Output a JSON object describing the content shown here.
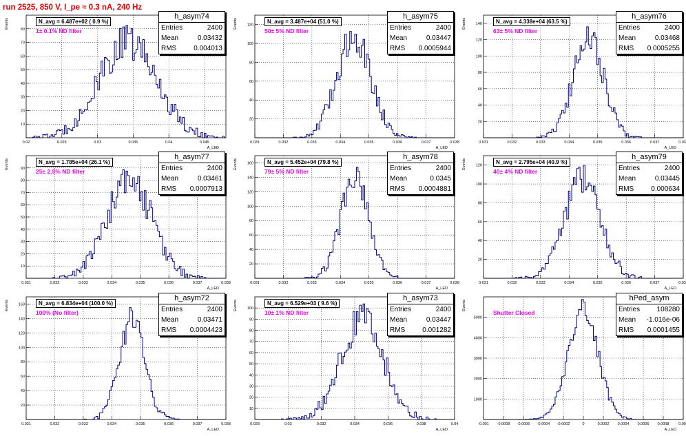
{
  "header": {
    "title": "run 2525,   850 V, I_pe ≈ 0.3 nA, 240 Hz"
  },
  "panels": [
    {
      "name": "h_asym74",
      "navg": "N_avg = 6.487e+02 ( 0.9 %)",
      "filter": "1± 0.1% ND filter",
      "stats": {
        "entries": "2400",
        "mean": "0.03432",
        "rms": "0.004013"
      }
    },
    {
      "name": "h_asym75",
      "navg": "N_avg = 3.487e+04 (51.0 %)",
      "filter": "50± 5% ND filter",
      "stats": {
        "entries": "2400",
        "mean": "0.03447",
        "rms": "0.0005944"
      }
    },
    {
      "name": "h_asym76",
      "navg": "N_avg = 4.338e+04 (63.5 %)",
      "filter": "63± 5% ND filter",
      "stats": {
        "entries": "2400",
        "mean": "0.03468",
        "rms": "0.0005255"
      }
    },
    {
      "name": "h_asym77",
      "navg": "N_avg = 1.785e+04 (26.1 %)",
      "filter": "25± 2.5% ND filter",
      "stats": {
        "entries": "2400",
        "mean": "0.03461",
        "rms": "0.0007913"
      }
    },
    {
      "name": "h_asym78",
      "navg": "N_avg = 5.452e+04 (79.8 %)",
      "filter": "79± 5% ND filter",
      "stats": {
        "entries": "2400",
        "mean": "0.0345",
        "rms": "0.0004881"
      }
    },
    {
      "name": "h_asym79",
      "navg": "N_avg = 2.795e+04 (40.9 %)",
      "filter": "40± 4% ND filter",
      "stats": {
        "entries": "2400",
        "mean": "0.03445",
        "rms": "0.000634"
      }
    },
    {
      "name": "h_asym72",
      "navg": "N_avg = 6.834e+04 (100.0 %)",
      "filter": "100% (No filter)",
      "stats": {
        "entries": "2400",
        "mean": "0.03471",
        "rms": "0.0004423"
      }
    },
    {
      "name": "h_asym73",
      "navg": "N_avg = 6.529e+03 ( 9.6 %)",
      "filter": "10± 1% ND filter",
      "stats": {
        "entries": "2400",
        "mean": "0.03447",
        "rms": "0.001282"
      }
    },
    {
      "name": "hPed_asym",
      "navg": "",
      "filter": "Shutter Closed",
      "stats": {
        "entries": "108280",
        "mean": "-1.016e-06",
        "rms": "0.0001455"
      }
    }
  ],
  "labels": {
    "entries": "Entries",
    "mean": "Mean",
    "rms": "RMS"
  },
  "colors": {
    "histogram": "#000080",
    "title": "#e00000",
    "filter": "#ee00ee"
  },
  "chart_data": [
    {
      "type": "bar",
      "title": "h_asym74",
      "xlabel": "A_LED",
      "ylabel": "Events",
      "grid": true,
      "legend": "top-right",
      "xlim": [
        0.02,
        0.048
      ],
      "ylim": [
        0,
        90
      ],
      "xticks": [
        "0.02",
        "0.025",
        "0.03",
        "0.035",
        "0.04",
        "0.045"
      ],
      "yticks": [
        "10",
        "20",
        "30",
        "40",
        "50",
        "60",
        "70",
        "80"
      ],
      "bin_count": 120,
      "mean": 0.03432,
      "rms": 0.004013,
      "peak": 70
    },
    {
      "type": "bar",
      "title": "h_asym75",
      "xlabel": "A_LED",
      "ylabel": "Events",
      "grid": true,
      "legend": "top-right",
      "xlim": [
        0.031,
        0.038
      ],
      "ylim": [
        0,
        130
      ],
      "xticks": [
        "0.031",
        "0.032",
        "0.033",
        "0.034",
        "0.035",
        "0.036",
        "0.037",
        "0.038"
      ],
      "yticks": [
        "20",
        "40",
        "60",
        "80",
        "100",
        "120"
      ],
      "bin_count": 120,
      "mean": 0.03447,
      "rms": 0.0005944,
      "peak": 108
    },
    {
      "type": "bar",
      "title": "h_asym76",
      "xlabel": "A_LED",
      "ylabel": "Events",
      "grid": true,
      "legend": "top-right",
      "xlim": [
        0.031,
        0.038
      ],
      "ylim": [
        0,
        150
      ],
      "xticks": [
        "0.031",
        "0.032",
        "0.033",
        "0.034",
        "0.035",
        "0.036",
        "0.037",
        "0.038"
      ],
      "yticks": [
        "20",
        "40",
        "60",
        "80",
        "100",
        "120",
        "140"
      ],
      "bin_count": 120,
      "mean": 0.03468,
      "rms": 0.0005255,
      "peak": 125
    },
    {
      "type": "bar",
      "title": "h_asym77",
      "xlabel": "A_LED",
      "ylabel": "Events",
      "grid": true,
      "legend": "top-right",
      "xlim": [
        0.031,
        0.038
      ],
      "ylim": [
        0,
        100
      ],
      "xticks": [
        "0.031",
        "0.032",
        "0.033",
        "0.034",
        "0.035",
        "0.036",
        "0.037",
        "0.038"
      ],
      "yticks": [
        "10",
        "20",
        "30",
        "40",
        "50",
        "60",
        "70",
        "80",
        "90"
      ],
      "bin_count": 120,
      "mean": 0.03461,
      "rms": 0.0007913,
      "peak": 80
    },
    {
      "type": "bar",
      "title": "h_asym78",
      "xlabel": "A_LED",
      "ylabel": "Events",
      "grid": true,
      "legend": "top-right",
      "xlim": [
        0.031,
        0.038
      ],
      "ylim": [
        0,
        170
      ],
      "xticks": [
        "0.031",
        "0.032",
        "0.033",
        "0.034",
        "0.035",
        "0.036",
        "0.037",
        "0.038"
      ],
      "yticks": [
        "20",
        "40",
        "60",
        "80",
        "100",
        "120",
        "140",
        "160"
      ],
      "bin_count": 120,
      "mean": 0.0345,
      "rms": 0.0004881,
      "peak": 140
    },
    {
      "type": "bar",
      "title": "h_asym79",
      "xlabel": "A_LED",
      "ylabel": "Events",
      "grid": true,
      "legend": "top-right",
      "xlim": [
        0.031,
        0.038
      ],
      "ylim": [
        0,
        130
      ],
      "xticks": [
        "0.031",
        "0.032",
        "0.033",
        "0.034",
        "0.035",
        "0.036",
        "0.037",
        "0.038"
      ],
      "yticks": [
        "20",
        "40",
        "60",
        "80",
        "100",
        "120"
      ],
      "bin_count": 120,
      "mean": 0.03445,
      "rms": 0.000634,
      "peak": 105
    },
    {
      "type": "bar",
      "title": "h_asym72",
      "xlabel": "A_LED",
      "ylabel": "Events",
      "grid": true,
      "legend": "top-right",
      "xlim": [
        0.031,
        0.038
      ],
      "ylim": [
        0,
        170
      ],
      "xticks": [
        "0.031",
        "0.032",
        "0.033",
        "0.034",
        "0.035",
        "0.036",
        "0.037",
        "0.038"
      ],
      "yticks": [
        "20",
        "40",
        "60",
        "80",
        "100",
        "120",
        "140",
        "160"
      ],
      "bin_count": 120,
      "mean": 0.03471,
      "rms": 0.0004423,
      "peak": 140
    },
    {
      "type": "bar",
      "title": "h_asym73",
      "xlabel": "A_LED",
      "ylabel": "Events",
      "grid": true,
      "legend": "top-right",
      "xlim": [
        0.028,
        0.04
      ],
      "ylim": [
        0,
        110
      ],
      "xticks": [
        "0.028",
        "0.03",
        "0.032",
        "0.034",
        "0.036",
        "0.038",
        "0.04"
      ],
      "yticks": [
        "10",
        "20",
        "30",
        "40",
        "50",
        "60",
        "70",
        "80",
        "90",
        "100"
      ],
      "bin_count": 120,
      "mean": 0.03447,
      "rms": 0.001282,
      "peak": 90
    },
    {
      "type": "bar",
      "title": "hPed_asym",
      "xlabel": "A_LED",
      "ylabel": "Events",
      "grid": true,
      "legend": "top-right",
      "xlim": [
        -0.001,
        0.001
      ],
      "ylim": [
        0,
        6000
      ],
      "xticks": [
        "-0.001",
        "-0.0008",
        "-0.0006",
        "-0.0004",
        "-0.0002",
        "0",
        "0.0002",
        "0.0004",
        "0.0006",
        "0.0008",
        "0.001"
      ],
      "yticks": [
        "1000",
        "2000",
        "3000",
        "4000",
        "5000"
      ],
      "bin_count": 120,
      "mean": -1.016e-06,
      "rms": 0.0001455,
      "peak": 5500
    }
  ]
}
